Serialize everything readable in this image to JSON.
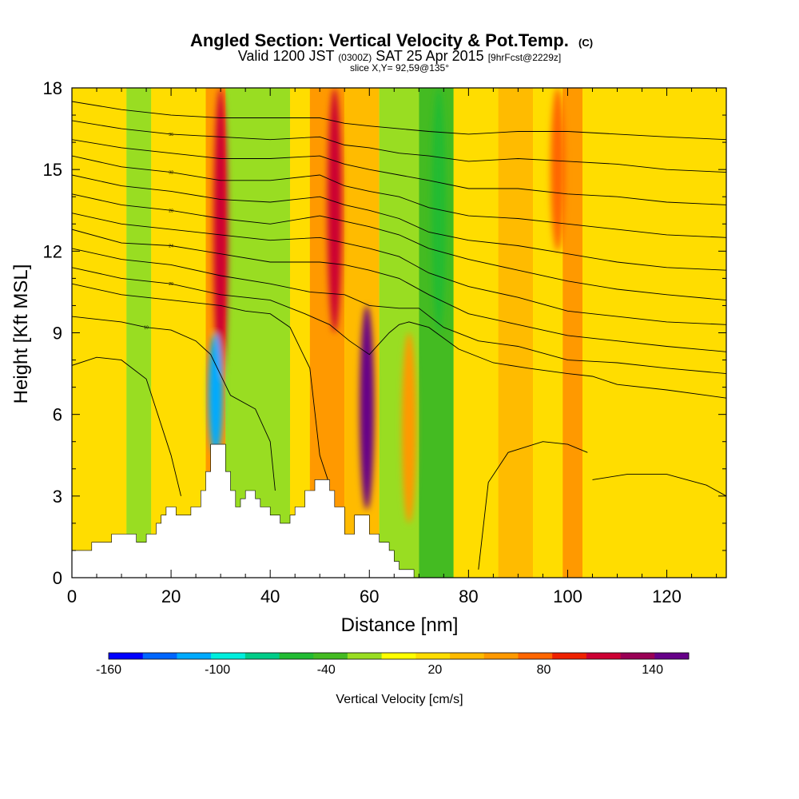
{
  "chart_data": {
    "type": "heatmap",
    "title": "Angled Section: Vertical Velocity & Pot.Temp.",
    "title_mark": "(C)",
    "subtitle": {
      "valid": "Valid 1200 JST",
      "utc": "(0300Z)",
      "date": "SAT 25 Apr 2015",
      "fcst": "[9hrFcst@2229z]"
    },
    "slice_label": "slice X,Y= 92,59@135°",
    "xlabel": "Distance [nm]",
    "ylabel": "Height [Kft MSL]",
    "xlim": [
      0,
      132
    ],
    "ylim": [
      0,
      18
    ],
    "x_ticks": [
      "0",
      "20",
      "40",
      "60",
      "80",
      "100",
      "120"
    ],
    "y_ticks": [
      "0",
      "3",
      "6",
      "9",
      "12",
      "15",
      "18"
    ],
    "grid": false,
    "colorbar": {
      "label": "Vertical Velocity [cm/s]",
      "tick_labels": [
        "-160",
        "-100",
        "-40",
        "20",
        "80",
        "140"
      ],
      "tick_values": [
        -160,
        -100,
        -40,
        20,
        80,
        140
      ],
      "colors": [
        "#0000ff",
        "#0066ff",
        "#00aaff",
        "#00eedd",
        "#00cc88",
        "#22bb33",
        "#44bb22",
        "#99dd22",
        "#ffff00",
        "#ffdd00",
        "#ffbb00",
        "#ff9900",
        "#ff6600",
        "#ee2200",
        "#cc0033",
        "#990055",
        "#660088"
      ],
      "range": [
        -160,
        160
      ]
    },
    "background_band_values": [
      {
        "x_start": 0,
        "x_end": 11,
        "value": 20
      },
      {
        "x_start": 11,
        "x_end": 16,
        "value": -20
      },
      {
        "x_start": 16,
        "x_end": 27,
        "value": 20
      },
      {
        "x_start": 27,
        "x_end": 31,
        "value": 50
      },
      {
        "x_start": 31,
        "x_end": 44,
        "value": -20
      },
      {
        "x_start": 44,
        "x_end": 48,
        "value": 20
      },
      {
        "x_start": 48,
        "x_end": 55,
        "value": 60
      },
      {
        "x_start": 55,
        "x_end": 62,
        "value": 30
      },
      {
        "x_start": 62,
        "x_end": 70,
        "value": -20
      },
      {
        "x_start": 70,
        "x_end": 77,
        "value": -40
      },
      {
        "x_start": 77,
        "x_end": 86,
        "value": 20
      },
      {
        "x_start": 86,
        "x_end": 93,
        "value": 40
      },
      {
        "x_start": 93,
        "x_end": 99,
        "value": 20
      },
      {
        "x_start": 99,
        "x_end": 103,
        "value": 50
      },
      {
        "x_start": 103,
        "x_end": 132,
        "value": 20
      }
    ],
    "terrain_kft": [
      [
        0,
        1.0
      ],
      [
        4,
        1.0
      ],
      [
        4,
        1.3
      ],
      [
        8,
        1.3
      ],
      [
        8,
        1.6
      ],
      [
        13,
        1.6
      ],
      [
        13,
        1.3
      ],
      [
        15,
        1.3
      ],
      [
        15,
        1.6
      ],
      [
        17,
        1.6
      ],
      [
        17,
        2.0
      ],
      [
        18,
        2.0
      ],
      [
        18,
        2.3
      ],
      [
        19,
        2.3
      ],
      [
        19,
        2.6
      ],
      [
        21,
        2.6
      ],
      [
        21,
        2.3
      ],
      [
        24,
        2.3
      ],
      [
        24,
        2.6
      ],
      [
        26,
        2.6
      ],
      [
        26,
        3.2
      ],
      [
        27,
        3.2
      ],
      [
        27,
        3.9
      ],
      [
        28,
        3.9
      ],
      [
        28,
        4.9
      ],
      [
        31,
        4.9
      ],
      [
        31,
        3.9
      ],
      [
        32,
        3.9
      ],
      [
        32,
        3.2
      ],
      [
        33,
        3.2
      ],
      [
        33,
        2.6
      ],
      [
        34,
        2.6
      ],
      [
        34,
        2.9
      ],
      [
        35,
        2.9
      ],
      [
        35,
        3.2
      ],
      [
        37,
        3.2
      ],
      [
        37,
        2.9
      ],
      [
        38,
        2.9
      ],
      [
        38,
        2.6
      ],
      [
        40,
        2.6
      ],
      [
        40,
        2.3
      ],
      [
        42,
        2.3
      ],
      [
        42,
        2.0
      ],
      [
        44,
        2.0
      ],
      [
        44,
        2.3
      ],
      [
        45,
        2.3
      ],
      [
        45,
        2.6
      ],
      [
        47,
        2.6
      ],
      [
        47,
        3.2
      ],
      [
        49,
        3.2
      ],
      [
        49,
        3.6
      ],
      [
        52,
        3.6
      ],
      [
        52,
        3.2
      ],
      [
        53,
        3.2
      ],
      [
        53,
        2.6
      ],
      [
        55,
        2.6
      ],
      [
        55,
        1.6
      ],
      [
        57,
        1.6
      ],
      [
        57,
        2.3
      ],
      [
        60,
        2.3
      ],
      [
        60,
        1.6
      ],
      [
        62,
        1.6
      ],
      [
        62,
        1.3
      ],
      [
        64,
        1.3
      ],
      [
        64,
        1.0
      ],
      [
        65,
        1.0
      ],
      [
        65,
        0.6
      ],
      [
        66,
        0.6
      ],
      [
        66,
        0.3
      ],
      [
        69,
        0.3
      ],
      [
        69,
        0.0
      ],
      [
        132,
        0.0
      ]
    ],
    "contour_series": [
      {
        "label": "",
        "points": [
          [
            0,
            7.8
          ],
          [
            5,
            8.1
          ],
          [
            10,
            8.0
          ],
          [
            15,
            7.3
          ],
          [
            20,
            4.5
          ],
          [
            22,
            3.0
          ]
        ]
      },
      {
        "label": "10",
        "points": [
          [
            0,
            9.6
          ],
          [
            10,
            9.4
          ],
          [
            15,
            9.2
          ],
          [
            20,
            9.1
          ],
          [
            25,
            8.7
          ],
          [
            28,
            8.2
          ],
          [
            32,
            6.7
          ],
          [
            37,
            6.2
          ],
          [
            40,
            5.0
          ],
          [
            41,
            3.2
          ]
        ]
      },
      {
        "label": "",
        "points": [
          [
            0,
            10.8
          ],
          [
            10,
            10.4
          ],
          [
            20,
            10.2
          ],
          [
            30,
            10.0
          ],
          [
            35,
            9.8
          ],
          [
            40,
            9.7
          ],
          [
            44,
            9.2
          ],
          [
            48,
            7.7
          ],
          [
            50,
            4.5
          ],
          [
            52,
            3.4
          ]
        ]
      },
      {
        "label": "20",
        "points": [
          [
            0,
            11.4
          ],
          [
            10,
            11.0
          ],
          [
            20,
            10.8
          ],
          [
            30,
            10.4
          ],
          [
            40,
            10.2
          ],
          [
            47,
            9.7
          ],
          [
            52,
            9.3
          ],
          [
            56,
            8.7
          ],
          [
            60,
            8.2
          ],
          [
            64,
            9.0
          ],
          [
            66,
            9.3
          ],
          [
            68,
            9.4
          ],
          [
            72,
            9.2
          ],
          [
            78,
            8.4
          ],
          [
            85,
            7.9
          ],
          [
            92,
            7.7
          ],
          [
            100,
            7.5
          ],
          [
            105,
            7.4
          ],
          [
            110,
            7.1
          ],
          [
            120,
            6.9
          ],
          [
            132,
            6.6
          ]
        ]
      },
      {
        "label": "",
        "points": [
          [
            0,
            12.1
          ],
          [
            10,
            11.7
          ],
          [
            20,
            11.5
          ],
          [
            30,
            11.1
          ],
          [
            40,
            10.8
          ],
          [
            48,
            10.5
          ],
          [
            55,
            10.4
          ],
          [
            60,
            10.0
          ],
          [
            66,
            9.9
          ],
          [
            70,
            9.9
          ],
          [
            75,
            9.2
          ],
          [
            82,
            8.7
          ],
          [
            90,
            8.5
          ],
          [
            100,
            8.0
          ],
          [
            110,
            7.9
          ],
          [
            120,
            7.7
          ],
          [
            132,
            7.5
          ]
        ]
      },
      {
        "label": "24",
        "points": [
          [
            0,
            12.8
          ],
          [
            10,
            12.3
          ],
          [
            20,
            12.2
          ],
          [
            30,
            11.9
          ],
          [
            40,
            11.6
          ],
          [
            50,
            11.6
          ],
          [
            55,
            11.5
          ],
          [
            60,
            11.3
          ],
          [
            66,
            11.0
          ],
          [
            72,
            10.4
          ],
          [
            80,
            9.7
          ],
          [
            90,
            9.3
          ],
          [
            100,
            8.9
          ],
          [
            110,
            8.7
          ],
          [
            120,
            8.5
          ],
          [
            132,
            8.3
          ]
        ]
      },
      {
        "label": "",
        "points": [
          [
            0,
            13.4
          ],
          [
            10,
            13.0
          ],
          [
            20,
            12.8
          ],
          [
            30,
            12.6
          ],
          [
            40,
            12.4
          ],
          [
            50,
            12.5
          ],
          [
            55,
            12.3
          ],
          [
            60,
            12.1
          ],
          [
            66,
            11.8
          ],
          [
            72,
            11.2
          ],
          [
            80,
            10.7
          ],
          [
            90,
            10.3
          ],
          [
            100,
            9.8
          ],
          [
            110,
            9.6
          ],
          [
            120,
            9.4
          ],
          [
            132,
            9.3
          ]
        ]
      },
      {
        "label": "28",
        "points": [
          [
            0,
            14.1
          ],
          [
            10,
            13.7
          ],
          [
            20,
            13.5
          ],
          [
            30,
            13.2
          ],
          [
            40,
            13.0
          ],
          [
            50,
            13.3
          ],
          [
            55,
            13.1
          ],
          [
            60,
            12.9
          ],
          [
            66,
            12.6
          ],
          [
            72,
            12.1
          ],
          [
            80,
            11.7
          ],
          [
            90,
            11.3
          ],
          [
            100,
            10.9
          ],
          [
            110,
            10.6
          ],
          [
            120,
            10.4
          ],
          [
            132,
            10.2
          ]
        ]
      },
      {
        "label": "",
        "points": [
          [
            0,
            14.8
          ],
          [
            10,
            14.4
          ],
          [
            20,
            14.2
          ],
          [
            30,
            13.9
          ],
          [
            40,
            13.8
          ],
          [
            50,
            14.0
          ],
          [
            55,
            13.7
          ],
          [
            60,
            13.5
          ],
          [
            66,
            13.2
          ],
          [
            72,
            12.7
          ],
          [
            80,
            12.4
          ],
          [
            90,
            12.2
          ],
          [
            100,
            11.9
          ],
          [
            110,
            11.6
          ],
          [
            120,
            11.4
          ],
          [
            132,
            11.3
          ]
        ]
      },
      {
        "label": "32",
        "points": [
          [
            0,
            15.5
          ],
          [
            10,
            15.1
          ],
          [
            20,
            14.9
          ],
          [
            30,
            14.6
          ],
          [
            40,
            14.6
          ],
          [
            50,
            14.8
          ],
          [
            55,
            14.4
          ],
          [
            60,
            14.2
          ],
          [
            66,
            14.0
          ],
          [
            72,
            13.6
          ],
          [
            80,
            13.3
          ],
          [
            90,
            13.2
          ],
          [
            100,
            13.0
          ],
          [
            110,
            12.8
          ],
          [
            120,
            12.6
          ],
          [
            132,
            12.5
          ]
        ]
      },
      {
        "label": "",
        "points": [
          [
            0,
            16.1
          ],
          [
            10,
            15.8
          ],
          [
            20,
            15.6
          ],
          [
            30,
            15.4
          ],
          [
            40,
            15.4
          ],
          [
            50,
            15.5
          ],
          [
            55,
            15.2
          ],
          [
            60,
            15.0
          ],
          [
            66,
            14.8
          ],
          [
            72,
            14.6
          ],
          [
            80,
            14.3
          ],
          [
            90,
            14.3
          ],
          [
            100,
            14.1
          ],
          [
            110,
            14.0
          ],
          [
            120,
            13.8
          ],
          [
            132,
            13.7
          ]
        ]
      },
      {
        "label": "36",
        "points": [
          [
            0,
            16.8
          ],
          [
            10,
            16.5
          ],
          [
            20,
            16.3
          ],
          [
            30,
            16.2
          ],
          [
            40,
            16.1
          ],
          [
            50,
            16.2
          ],
          [
            55,
            15.9
          ],
          [
            60,
            15.8
          ],
          [
            66,
            15.6
          ],
          [
            72,
            15.5
          ],
          [
            80,
            15.3
          ],
          [
            90,
            15.4
          ],
          [
            100,
            15.3
          ],
          [
            110,
            15.2
          ],
          [
            120,
            15.0
          ],
          [
            132,
            14.9
          ]
        ]
      },
      {
        "label": "",
        "points": [
          [
            0,
            17.5
          ],
          [
            10,
            17.2
          ],
          [
            20,
            17.0
          ],
          [
            30,
            16.9
          ],
          [
            40,
            16.9
          ],
          [
            50,
            16.9
          ],
          [
            55,
            16.7
          ],
          [
            60,
            16.6
          ],
          [
            66,
            16.5
          ],
          [
            72,
            16.4
          ],
          [
            80,
            16.3
          ],
          [
            90,
            16.4
          ],
          [
            100,
            16.4
          ],
          [
            110,
            16.3
          ],
          [
            120,
            16.2
          ],
          [
            132,
            16.1
          ]
        ]
      },
      {
        "label": "",
        "points": [
          [
            105,
            3.6
          ],
          [
            112,
            3.8
          ],
          [
            120,
            3.8
          ],
          [
            128,
            3.4
          ],
          [
            132,
            3.0
          ]
        ]
      },
      {
        "label": "",
        "points": [
          [
            82,
            0.3
          ],
          [
            84,
            3.5
          ],
          [
            88,
            4.6
          ],
          [
            95,
            5.0
          ],
          [
            100,
            4.9
          ],
          [
            104,
            4.6
          ]
        ]
      }
    ],
    "vertical_velocity_features": [
      {
        "x": 30,
        "z_bottom": 7,
        "z_top": 18,
        "value": 110
      },
      {
        "x": 29,
        "z_bottom": 4.5,
        "z_top": 9,
        "value": -110
      },
      {
        "x": 53,
        "z_bottom": 9,
        "z_top": 18,
        "value": 110
      },
      {
        "x": 59.5,
        "z_bottom": 2.5,
        "z_top": 10,
        "value": 160
      },
      {
        "x": 68,
        "z_bottom": 2,
        "z_top": 9,
        "value": 50
      },
      {
        "x": 74,
        "z_bottom": 9,
        "z_top": 18,
        "value": -60
      },
      {
        "x": 98,
        "z_bottom": 12,
        "z_top": 18,
        "value": 80
      }
    ]
  }
}
